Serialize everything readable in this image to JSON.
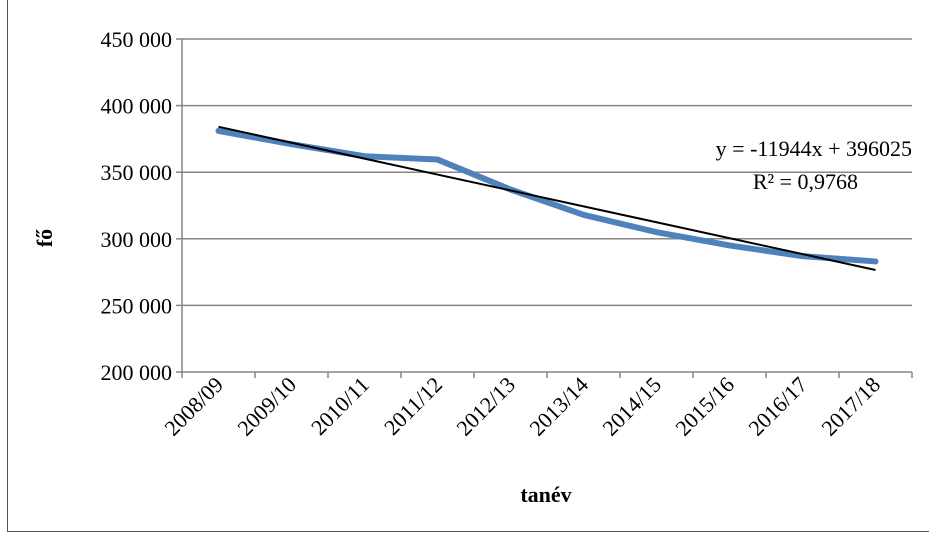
{
  "chart_data": {
    "type": "line",
    "xlabel": "tanév",
    "ylabel": "fő",
    "categories": [
      "2008/09",
      "2009/10",
      "2010/11",
      "2011/12",
      "2012/13",
      "2013/14",
      "2014/15",
      "2015/16",
      "2016/17",
      "2017/18"
    ],
    "ylim": [
      200000,
      450000
    ],
    "yticks": [
      200000,
      250000,
      300000,
      350000,
      400000,
      450000
    ],
    "ytick_labels": [
      "200 000",
      "250 000",
      "300 000",
      "350 000",
      "400 000",
      "450 000"
    ],
    "grid": true,
    "series": [
      {
        "values": [
          381000,
          371000,
          362000,
          359500,
          337000,
          318000,
          305000,
          295000,
          287000,
          283000
        ],
        "color": "#4f81bd"
      }
    ],
    "trendline": {
      "type": "linear",
      "slope": -11944,
      "intercept": 396025,
      "color": "#000000",
      "equation_label": "y = -11944x + 396025",
      "r2_label": "R² = 0,9768"
    }
  }
}
